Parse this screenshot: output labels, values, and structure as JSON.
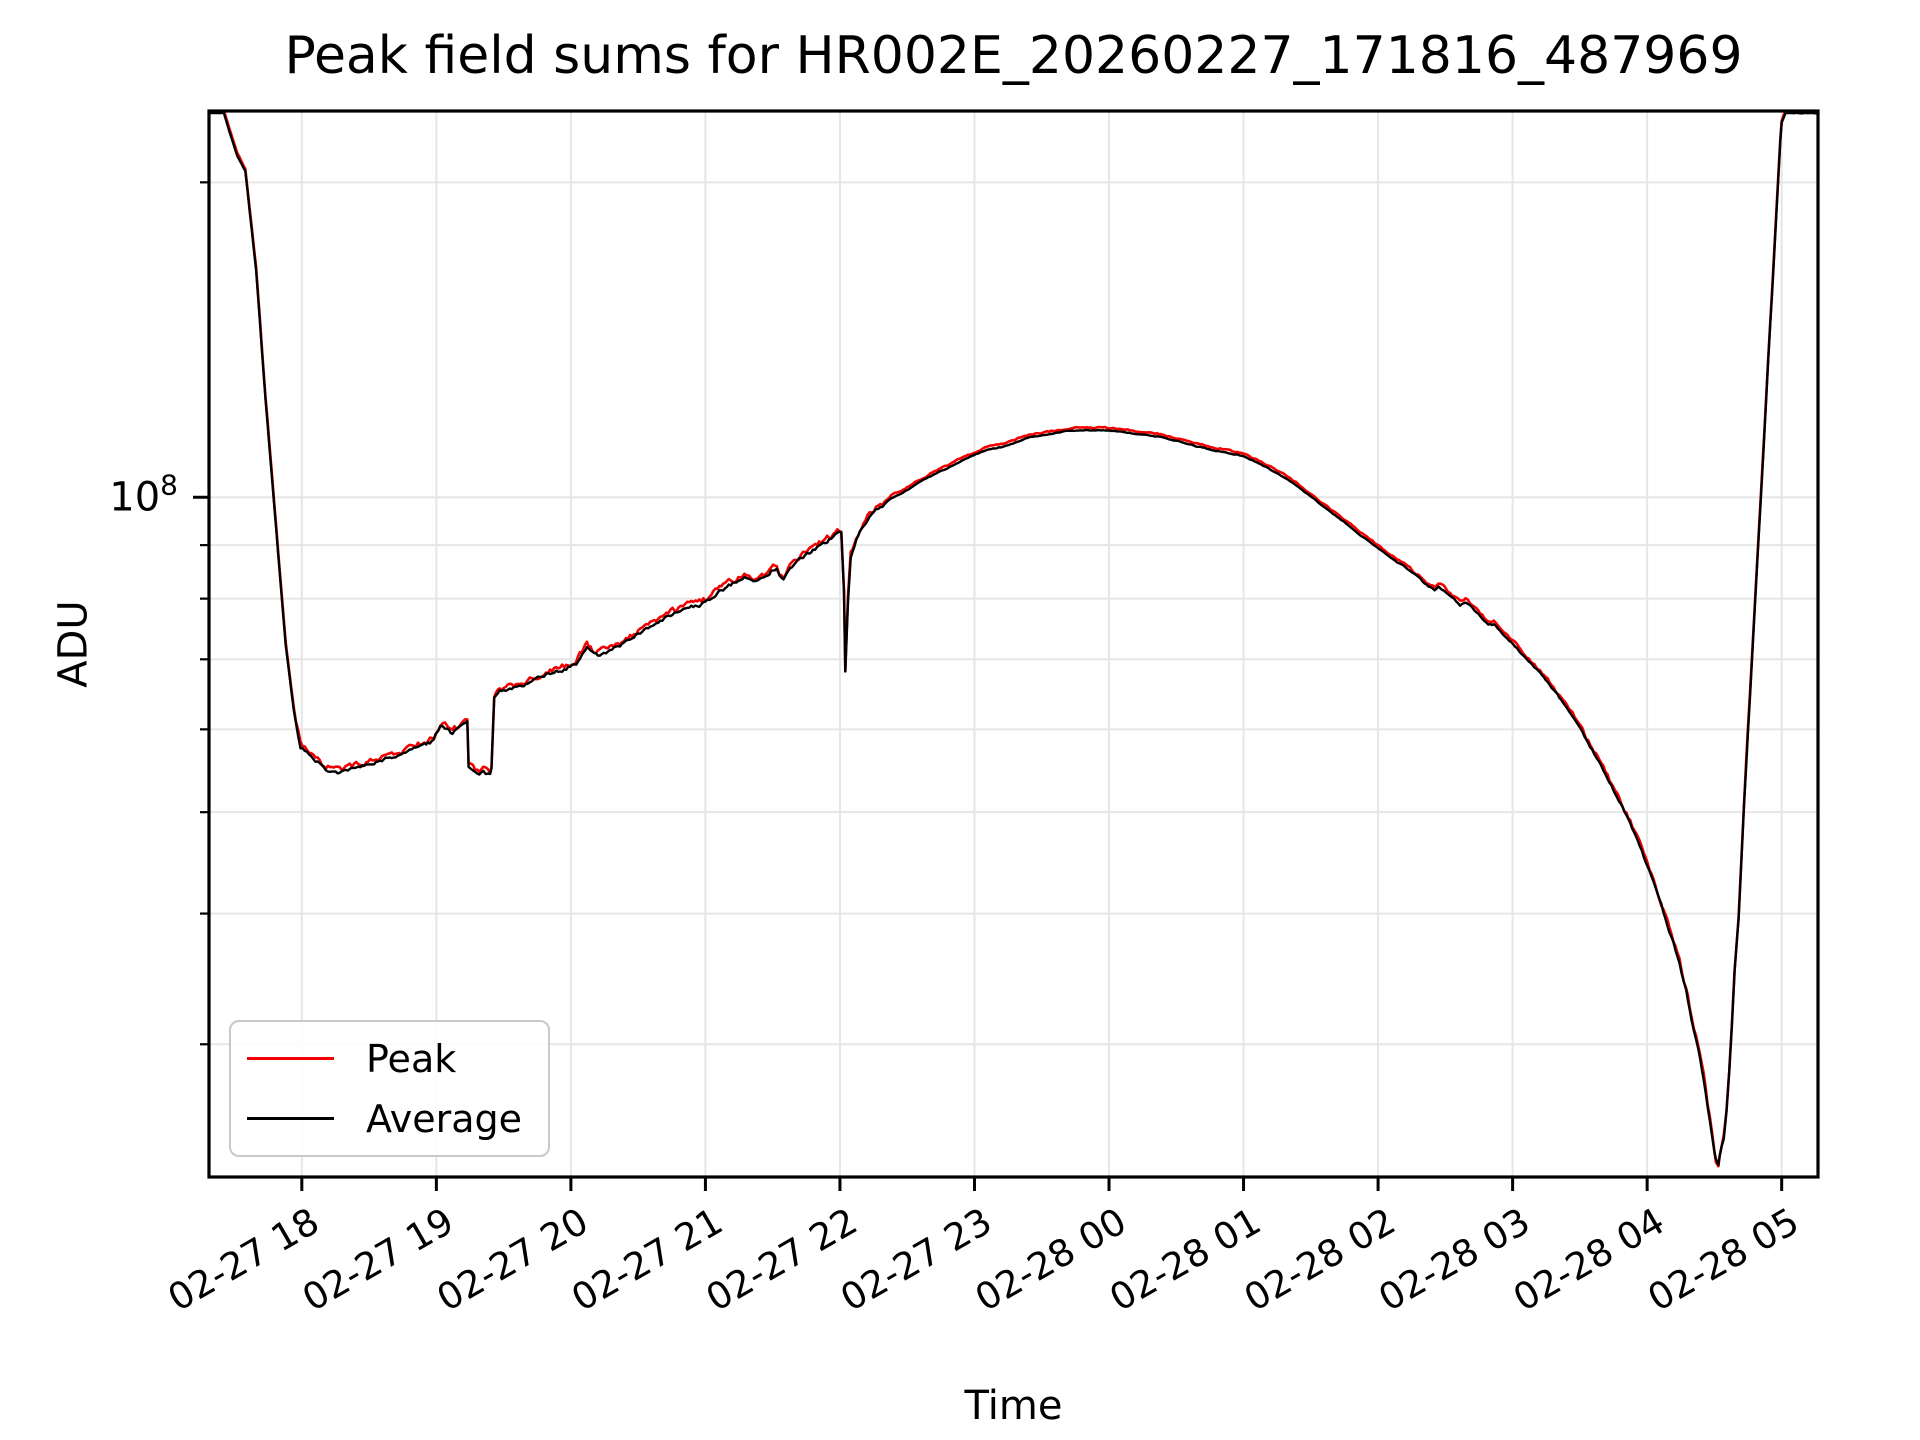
{
  "chart": {
    "title": "Peak field sums for HR002E_20260227_171816_487969",
    "xlabel": "Time",
    "ylabel": "ADU",
    "legend": {
      "position": "lower left",
      "entries": [
        {
          "label": "Peak",
          "color": "#f40000"
        },
        {
          "label": "Average",
          "color": "#000000"
        }
      ]
    },
    "colors": {
      "grid": "#e6e6e6",
      "spine": "#000000",
      "background": "#ffffff"
    }
  },
  "chart_data": {
    "type": "line",
    "title": "Peak field sums for HR002E_20260227_171816_487969",
    "xlabel": "Time",
    "ylabel": "ADU",
    "grid": true,
    "legend_position": "lower left",
    "x_axis": {
      "unit": "hours since 02-27 00:00 (labels MM-DD HH)",
      "min_hour": 17.31,
      "max_hour": 29.27,
      "ticks": [
        {
          "hour": 18,
          "label": "02-27 18"
        },
        {
          "hour": 19,
          "label": "02-27 19"
        },
        {
          "hour": 20,
          "label": "02-27 20"
        },
        {
          "hour": 21,
          "label": "02-27 21"
        },
        {
          "hour": 22,
          "label": "02-27 22"
        },
        {
          "hour": 23,
          "label": "02-27 23"
        },
        {
          "hour": 24,
          "label": "02-28 00"
        },
        {
          "hour": 25,
          "label": "02-28 01"
        },
        {
          "hour": 26,
          "label": "02-28 02"
        },
        {
          "hour": 27,
          "label": "02-28 03"
        },
        {
          "hour": 28,
          "label": "02-28 04"
        },
        {
          "hour": 29,
          "label": "02-28 05"
        }
      ]
    },
    "y_axis": {
      "scale": "log",
      "unit": "ADU",
      "min": 22400000.0,
      "max": 234000000.0,
      "major_ticks": [
        {
          "value": 100000000.0,
          "label": "10^8"
        }
      ],
      "minor_ticks": [
        200000000.0,
        90000000.0,
        80000000.0,
        70000000.0,
        60000000.0,
        50000000.0,
        40000000.0,
        30000000.0
      ]
    },
    "noise_zones": [
      {
        "from": 17.5,
        "to": 17.95,
        "amp": 0.6
      },
      {
        "from": 17.95,
        "to": 22.33,
        "amp": 3.0
      },
      {
        "from": 22.33,
        "to": 26.15,
        "amp": 0.8
      },
      {
        "from": 26.15,
        "to": 27.3,
        "amp": 1.6
      },
      {
        "from": 27.3,
        "to": 28.1,
        "amp": 2.2
      },
      {
        "from": 28.1,
        "to": 28.44,
        "amp": 3.2
      },
      {
        "from": 28.44,
        "to": 28.6,
        "amp": 5.0
      },
      {
        "from": 28.6,
        "to": 28.78,
        "amp": 3.2
      },
      {
        "from": 28.78,
        "to": 29.27,
        "amp": 0.7
      }
    ],
    "series": [
      {
        "name": "Peak",
        "color": "#f40000",
        "points_same_as": "Average",
        "value_ratio": 1.006
      },
      {
        "name": "Average",
        "color": "#000000",
        "points": [
          [
            17.31,
            233000000.0
          ],
          [
            17.42,
            233000000.0
          ],
          [
            17.46,
            224000000.0
          ],
          [
            17.52,
            212000000.0
          ],
          [
            17.58,
            205000000.0
          ],
          [
            17.66,
            165000000.0
          ],
          [
            17.73,
            124000000.0
          ],
          [
            17.81,
            93000000.0
          ],
          [
            17.88,
            72200000.0
          ],
          [
            17.94,
            62600000.0
          ],
          [
            17.99,
            57800000.0
          ],
          [
            18.07,
            56600000.0
          ],
          [
            18.18,
            54900000.0
          ],
          [
            18.28,
            54600000.0
          ],
          [
            18.45,
            55300000.0
          ],
          [
            18.61,
            56100000.0
          ],
          [
            18.77,
            57000000.0
          ],
          [
            18.91,
            58000000.0
          ],
          [
            18.98,
            58500000.0
          ],
          [
            19.03,
            60500000.0
          ],
          [
            19.08,
            60100000.0
          ],
          [
            19.12,
            59400000.0
          ],
          [
            19.18,
            60300000.0
          ],
          [
            19.23,
            61200000.0
          ],
          [
            19.24,
            55400000.0
          ],
          [
            19.29,
            54400000.0
          ],
          [
            19.35,
            54600000.0
          ],
          [
            19.4,
            54200000.0
          ],
          [
            19.41,
            54900000.0
          ],
          [
            19.43,
            64000000.0
          ],
          [
            19.47,
            65200000.0
          ],
          [
            19.59,
            65700000.0
          ],
          [
            19.71,
            66700000.0
          ],
          [
            19.83,
            67800000.0
          ],
          [
            19.95,
            68500000.0
          ],
          [
            20.04,
            69300000.0
          ],
          [
            20.08,
            70700000.0
          ],
          [
            20.12,
            71900000.0
          ],
          [
            20.16,
            71100000.0
          ],
          [
            20.2,
            70700000.0
          ],
          [
            20.29,
            71300000.0
          ],
          [
            20.41,
            72700000.0
          ],
          [
            20.53,
            74500000.0
          ],
          [
            20.65,
            76100000.0
          ],
          [
            20.77,
            77500000.0
          ],
          [
            20.88,
            78500000.0
          ],
          [
            20.97,
            78900000.0
          ],
          [
            21.03,
            79700000.0
          ],
          [
            21.09,
            81200000.0
          ],
          [
            21.16,
            82100000.0
          ],
          [
            21.23,
            83000000.0
          ],
          [
            21.29,
            83700000.0
          ],
          [
            21.34,
            83100000.0
          ],
          [
            21.39,
            83000000.0
          ],
          [
            21.45,
            83700000.0
          ],
          [
            21.49,
            85000000.0
          ],
          [
            21.53,
            85400000.0
          ],
          [
            21.55,
            84000000.0
          ],
          [
            21.58,
            83100000.0
          ],
          [
            21.6,
            83900000.0
          ],
          [
            21.63,
            85600000.0
          ],
          [
            21.67,
            86700000.0
          ],
          [
            21.71,
            87400000.0
          ],
          [
            21.77,
            88400000.0
          ],
          [
            21.83,
            89600000.0
          ],
          [
            21.89,
            90600000.0
          ],
          [
            21.95,
            91600000.0
          ],
          [
            22.01,
            92600000.0
          ],
          [
            22.03,
            81500000.0
          ],
          [
            22.04,
            68100000.0
          ],
          [
            22.06,
            79700000.0
          ],
          [
            22.08,
            87800000.0
          ],
          [
            22.12,
            91000000.0
          ],
          [
            22.16,
            93400000.0
          ],
          [
            22.22,
            95700000.0
          ],
          [
            22.3,
            97800000.0
          ],
          [
            22.38,
            99800000.0
          ],
          [
            22.47,
            101000000.0
          ],
          [
            22.57,
            103000000.0
          ],
          [
            22.69,
            105000000.0
          ],
          [
            22.82,
            107000000.0
          ],
          [
            22.95,
            109000000.0
          ],
          [
            23.09,
            111000000.0
          ],
          [
            23.24,
            112000000.0
          ],
          [
            23.39,
            114000000.0
          ],
          [
            23.54,
            114800000.0
          ],
          [
            23.68,
            115600000.0
          ],
          [
            23.82,
            115900000.0
          ],
          [
            23.97,
            115900000.0
          ],
          [
            24.12,
            115400000.0
          ],
          [
            24.27,
            114800000.0
          ],
          [
            24.4,
            114100000.0
          ],
          [
            24.53,
            113100000.0
          ],
          [
            24.65,
            111900000.0
          ],
          [
            24.78,
            110900000.0
          ],
          [
            24.9,
            110200000.0
          ],
          [
            25.0,
            109400000.0
          ],
          [
            25.1,
            108000000.0
          ],
          [
            25.2,
            106300000.0
          ],
          [
            25.29,
            104700000.0
          ],
          [
            25.39,
            102700000.0
          ],
          [
            25.49,
            100400000.0
          ],
          [
            25.58,
            98300000.0
          ],
          [
            25.68,
            96100000.0
          ],
          [
            25.78,
            94000000.0
          ],
          [
            25.87,
            92000000.0
          ],
          [
            25.96,
            90200000.0
          ],
          [
            26.05,
            88400000.0
          ],
          [
            26.14,
            86700000.0
          ],
          [
            26.22,
            85400000.0
          ],
          [
            26.3,
            83700000.0
          ],
          [
            26.36,
            82400000.0
          ],
          [
            26.42,
            81500000.0
          ],
          [
            26.45,
            82200000.0
          ],
          [
            26.49,
            81500000.0
          ],
          [
            26.55,
            80100000.0
          ],
          [
            26.61,
            78900000.0
          ],
          [
            26.65,
            79400000.0
          ],
          [
            26.7,
            78400000.0
          ],
          [
            26.76,
            77000000.0
          ],
          [
            26.82,
            75600000.0
          ],
          [
            26.86,
            75600000.0
          ],
          [
            26.92,
            74200000.0
          ],
          [
            26.99,
            72700000.0
          ],
          [
            27.06,
            71100000.0
          ],
          [
            27.12,
            69700000.0
          ],
          [
            27.19,
            68200000.0
          ],
          [
            27.26,
            66600000.0
          ],
          [
            27.32,
            65000000.0
          ],
          [
            27.39,
            63200000.0
          ],
          [
            27.46,
            61300000.0
          ],
          [
            27.52,
            59400000.0
          ],
          [
            27.59,
            57400000.0
          ],
          [
            27.66,
            55400000.0
          ],
          [
            27.72,
            53400000.0
          ],
          [
            27.79,
            51300000.0
          ],
          [
            27.86,
            49200000.0
          ],
          [
            27.93,
            47000000.0
          ],
          [
            27.99,
            44800000.0
          ],
          [
            28.06,
            42400000.0
          ],
          [
            28.12,
            40200000.0
          ],
          [
            28.18,
            38000000.0
          ],
          [
            28.24,
            35800000.0
          ],
          [
            28.29,
            33700000.0
          ],
          [
            28.33,
            31700000.0
          ],
          [
            28.38,
            29700000.0
          ],
          [
            28.42,
            27800000.0
          ],
          [
            28.45,
            26200000.0
          ],
          [
            28.48,
            24800000.0
          ],
          [
            28.5,
            23800000.0
          ],
          [
            28.51,
            23300000.0
          ],
          [
            28.53,
            23100000.0
          ],
          [
            28.54,
            23600000.0
          ],
          [
            28.57,
            24300000.0
          ],
          [
            28.59,
            25800000.0
          ],
          [
            28.61,
            28100000.0
          ],
          [
            28.63,
            31100000.0
          ],
          [
            28.65,
            35000000.0
          ],
          [
            28.68,
            39500000.0
          ],
          [
            28.7,
            44800000.0
          ],
          [
            28.72,
            50700000.0
          ],
          [
            28.75,
            59700000.0
          ],
          [
            28.78,
            70200000.0
          ],
          [
            28.81,
            82600000.0
          ],
          [
            28.84,
            97200000.0
          ],
          [
            28.87,
            114000000.0
          ],
          [
            28.9,
            135000000.0
          ],
          [
            28.93,
            158000000.0
          ],
          [
            28.96,
            186000000.0
          ],
          [
            28.99,
            219000000.0
          ],
          [
            29.0,
            228000000.0
          ],
          [
            29.03,
            233000000.0
          ],
          [
            29.27,
            233000000.0
          ]
        ]
      }
    ]
  }
}
